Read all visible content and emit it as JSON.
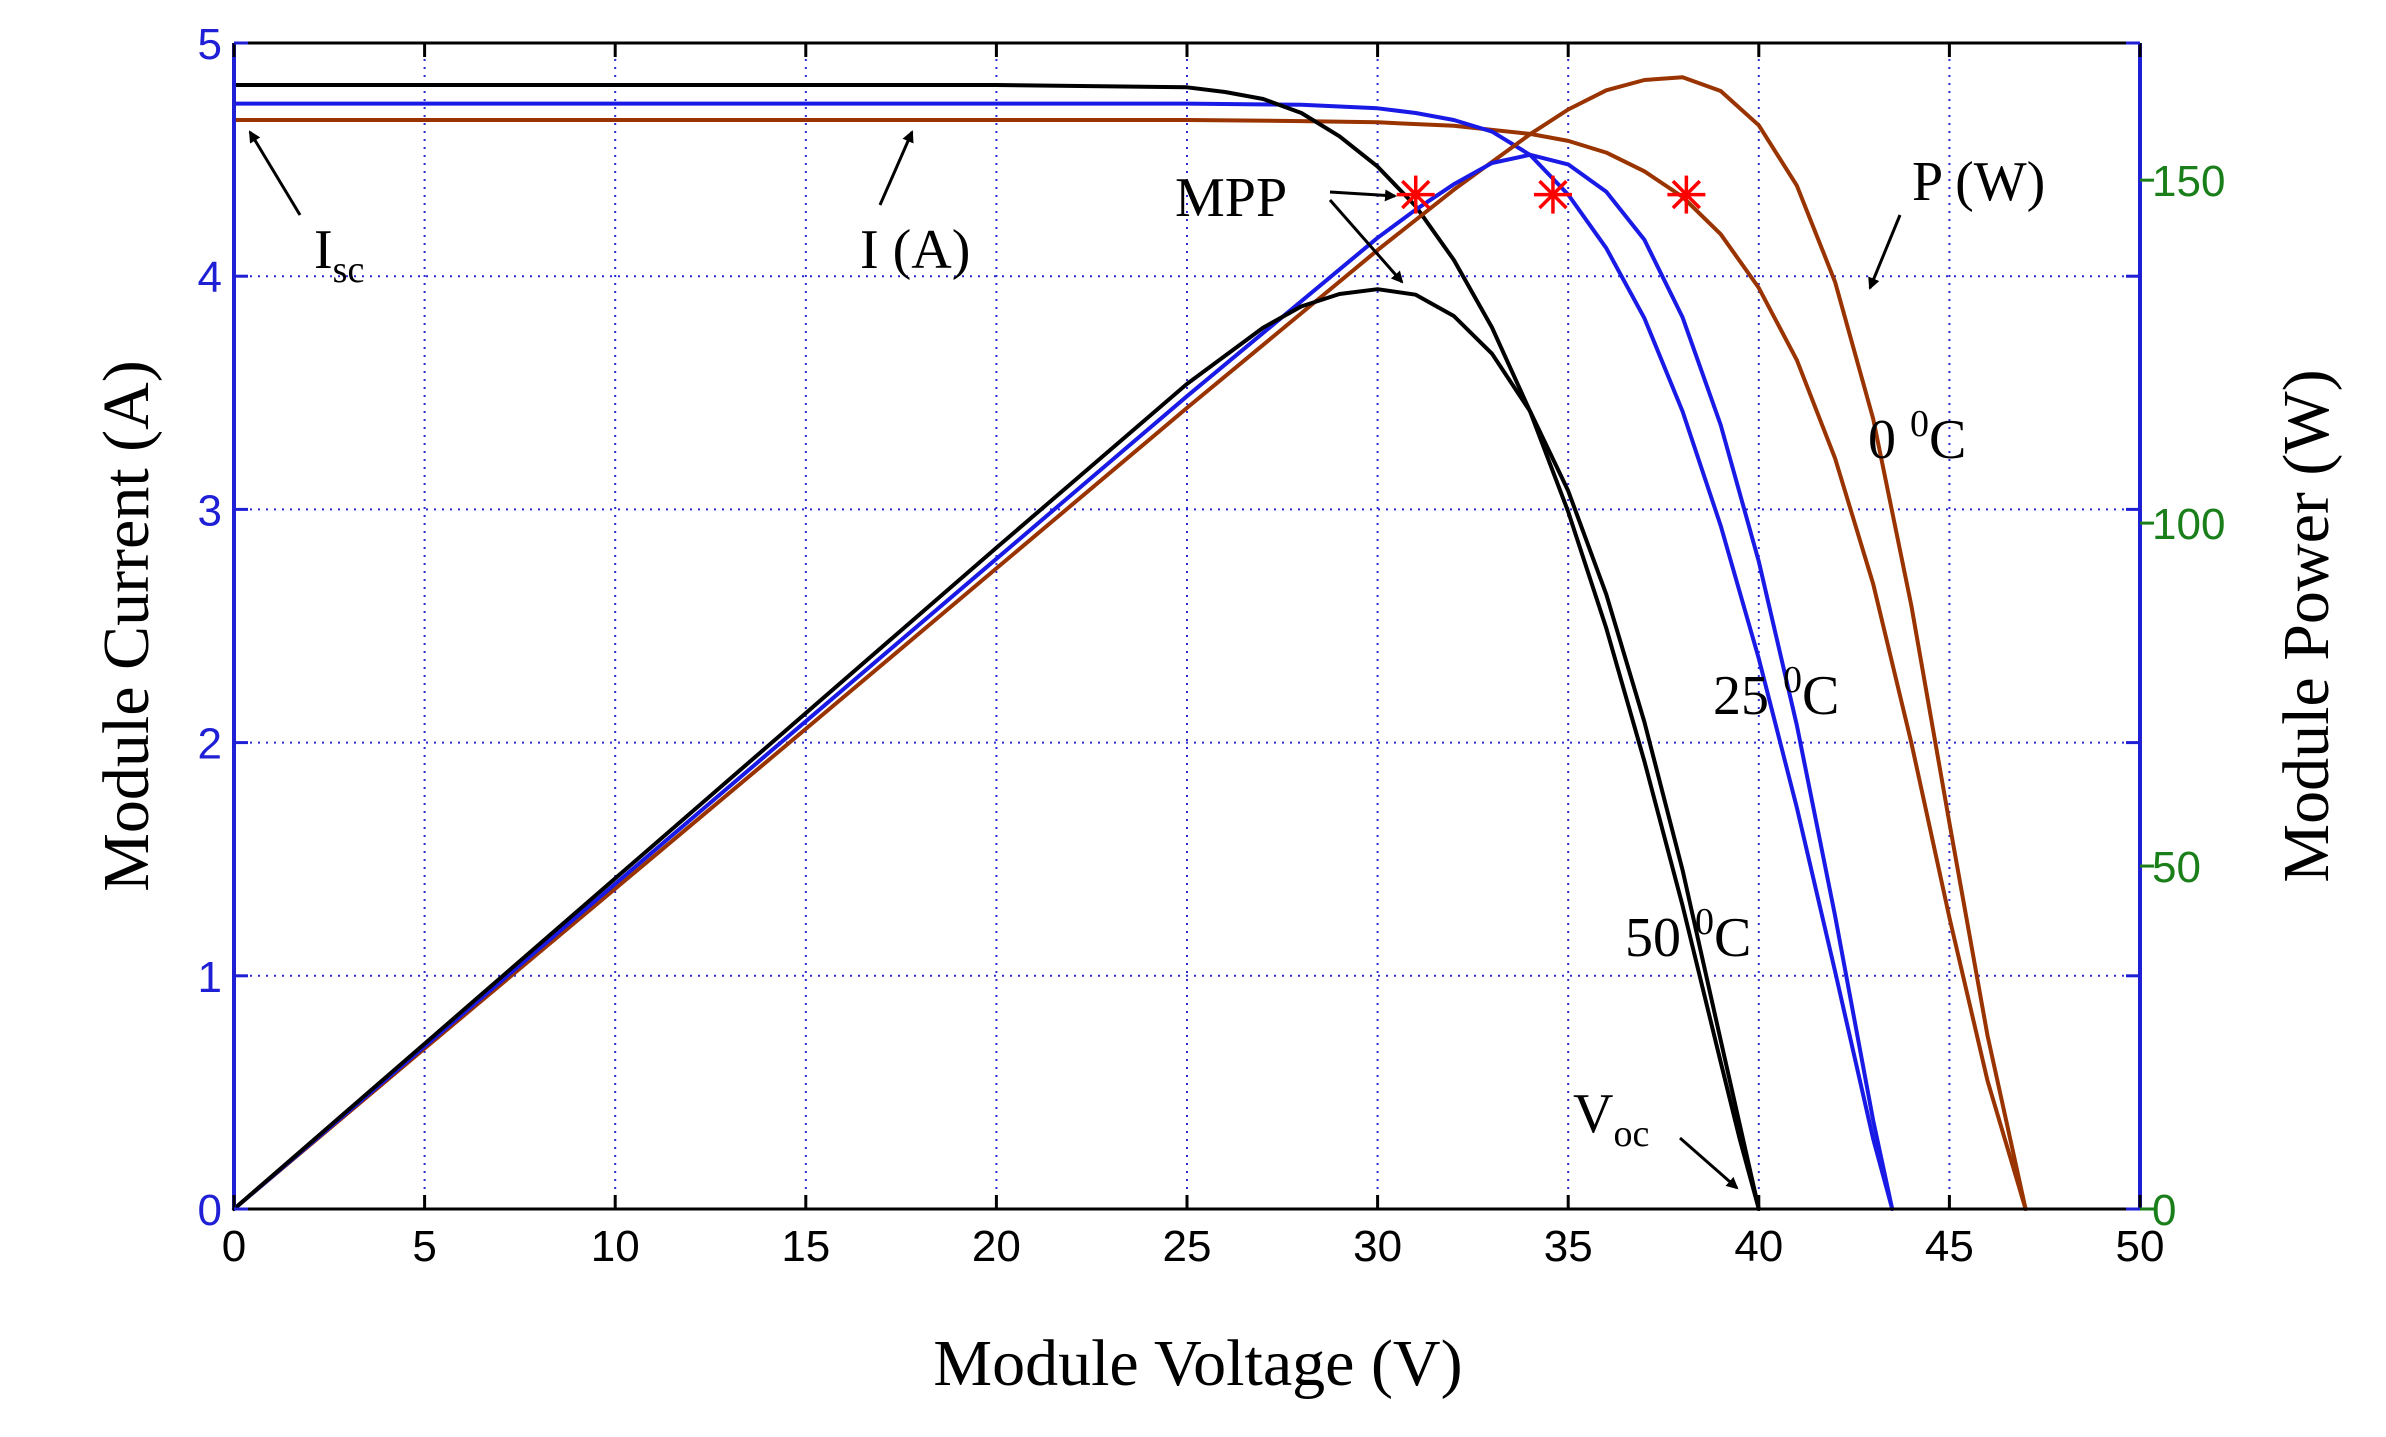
{
  "chart_data": {
    "type": "line",
    "xlabel": "Module Voltage (V)",
    "ylabel_left": "Module Current (A)",
    "ylabel_right": "Module Power (W)",
    "xlim": [
      0,
      50
    ],
    "ylim_left": [
      0,
      5
    ],
    "ylim_right": [
      0,
      170
    ],
    "x_ticks": [
      "0",
      "5",
      "10",
      "15",
      "20",
      "25",
      "30",
      "35",
      "40",
      "45",
      "50"
    ],
    "y_left_ticks": [
      "0",
      "1",
      "2",
      "3",
      "4",
      "5"
    ],
    "y_right_ticks": [
      "0",
      "50",
      "100",
      "150"
    ],
    "grid": true,
    "colors": {
      "t0": "#993300",
      "t25": "#1a1ae6",
      "t50": "#000000",
      "mpp_marker": "#ff0000",
      "left_axis": "#1f1fd6",
      "right_axis": "#1a7f1a",
      "grid": "#2a2ad0"
    },
    "series": [
      {
        "name": "0 0C",
        "kind": "current",
        "color_key": "t0",
        "x": [
          0,
          10,
          20,
          25,
          28,
          30,
          32,
          34,
          35,
          36,
          37,
          38,
          39,
          40,
          41,
          42,
          43,
          44,
          45,
          46,
          47
        ],
        "y": [
          4.67,
          4.67,
          4.67,
          4.67,
          4.665,
          4.66,
          4.645,
          4.61,
          4.58,
          4.53,
          4.45,
          4.34,
          4.18,
          3.95,
          3.64,
          3.22,
          2.68,
          2.0,
          1.25,
          0.55,
          0
        ]
      },
      {
        "name": "25 0C",
        "kind": "current",
        "color_key": "t25",
        "x": [
          0,
          10,
          20,
          25,
          28,
          30,
          31,
          32,
          33,
          34,
          35,
          36,
          37,
          38,
          39,
          40,
          41,
          42,
          42.5,
          43,
          43.5
        ],
        "y": [
          4.74,
          4.74,
          4.74,
          4.74,
          4.735,
          4.72,
          4.7,
          4.67,
          4.62,
          4.52,
          4.35,
          4.12,
          3.82,
          3.42,
          2.93,
          2.36,
          1.72,
          1.02,
          0.66,
          0.3,
          0
        ]
      },
      {
        "name": "50 0C",
        "kind": "current",
        "color_key": "t50",
        "x": [
          0,
          10,
          20,
          25,
          26,
          27,
          28,
          29,
          30,
          31,
          32,
          33,
          34,
          35,
          36,
          37,
          38,
          39,
          39.5,
          40
        ],
        "y": [
          4.82,
          4.82,
          4.82,
          4.81,
          4.79,
          4.76,
          4.7,
          4.6,
          4.47,
          4.3,
          4.07,
          3.78,
          3.42,
          2.99,
          2.49,
          1.92,
          1.3,
          0.63,
          0.3,
          0
        ]
      },
      {
        "name": "0 0C",
        "kind": "power",
        "color_key": "t0",
        "x": [
          0,
          5,
          10,
          15,
          20,
          25,
          30,
          32,
          34,
          35,
          36,
          37,
          38,
          39,
          40,
          41,
          42,
          43,
          44,
          45,
          46,
          47
        ],
        "y": [
          0,
          23.4,
          46.7,
          70.0,
          93.4,
          116.8,
          139.8,
          148.6,
          156.7,
          160.3,
          163.1,
          164.6,
          165,
          163.0,
          158.0,
          149.2,
          135.2,
          115.2,
          88.0,
          56.3,
          25.3,
          0
        ]
      },
      {
        "name": "25 0C",
        "kind": "power",
        "color_key": "t25",
        "x": [
          0,
          5,
          10,
          15,
          20,
          25,
          30,
          31,
          32,
          33,
          34,
          35,
          36,
          37,
          38,
          39,
          40,
          41,
          42,
          43,
          43.5
        ],
        "y": [
          0,
          23.7,
          47.4,
          71.1,
          94.8,
          118.5,
          141.6,
          145.7,
          149.4,
          152.5,
          153.7,
          152.3,
          148.3,
          141.3,
          130.0,
          114.3,
          94.4,
          70.5,
          42.8,
          12.9,
          0
        ]
      },
      {
        "name": "50 0C",
        "kind": "power",
        "color_key": "t50",
        "x": [
          0,
          5,
          10,
          15,
          20,
          25,
          27,
          28,
          29,
          30,
          31,
          32,
          33,
          34,
          35,
          36,
          37,
          38,
          39,
          40
        ],
        "y": [
          0,
          24.1,
          48.2,
          72.3,
          96.4,
          120.3,
          128.5,
          131.6,
          133.4,
          134.1,
          133.3,
          130.2,
          124.7,
          116.3,
          104.7,
          89.6,
          71.0,
          49.4,
          24.6,
          0
        ]
      }
    ],
    "mpp_points": [
      {
        "x": 31.0,
        "y": 4.35
      },
      {
        "x": 34.6,
        "y": 4.35
      },
      {
        "x": 38.1,
        "y": 4.35
      }
    ],
    "annotations": [
      {
        "id": "isc",
        "text": "I",
        "sub": "sc"
      },
      {
        "id": "current",
        "text": "I (A)"
      },
      {
        "id": "mpp",
        "text": "MPP"
      },
      {
        "id": "power",
        "text": "P (W)"
      },
      {
        "id": "t0",
        "text": "0 ",
        "sup": "0",
        "tail": "C"
      },
      {
        "id": "t25",
        "text": "25 ",
        "sup": "0",
        "tail": "C"
      },
      {
        "id": "t50",
        "text": "50 ",
        "sup": "0",
        "tail": "C"
      },
      {
        "id": "voc",
        "text": "V",
        "sub": "oc"
      }
    ]
  }
}
